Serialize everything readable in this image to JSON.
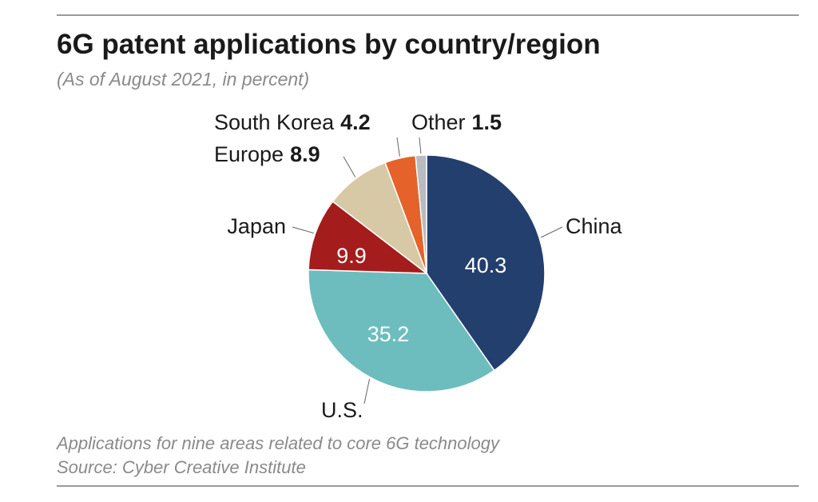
{
  "header": {
    "title": "6G patent applications by country/region",
    "subtitle": "(As of August 2021, in percent)"
  },
  "footer": {
    "note": "Applications for nine areas related to core 6G technology",
    "source": "Source: Cyber Creative Institute"
  },
  "chart_data": {
    "type": "pie",
    "title": "6G patent applications by country/region",
    "subtitle": "(As of August 2021, in percent)",
    "slices": [
      {
        "label": "China",
        "value": 40.3,
        "color": "#233f6e",
        "label_inside": true,
        "inside_text_color": "#ffffff"
      },
      {
        "label": "U.S.",
        "value": 35.2,
        "color": "#6dbdbf",
        "label_inside": true,
        "inside_text_color": "#ffffff"
      },
      {
        "label": "Japan",
        "value": 9.9,
        "color": "#a51c1c",
        "label_inside": true,
        "inside_text_color": "#ffffff"
      },
      {
        "label": "Europe",
        "value": 8.9,
        "color": "#d7c9a5",
        "label_inside": false
      },
      {
        "label": "South Korea",
        "value": 4.2,
        "color": "#e5632a",
        "label_inside": false
      },
      {
        "label": "Other",
        "value": 1.5,
        "color": "#b8bcc0",
        "label_inside": false
      }
    ]
  }
}
